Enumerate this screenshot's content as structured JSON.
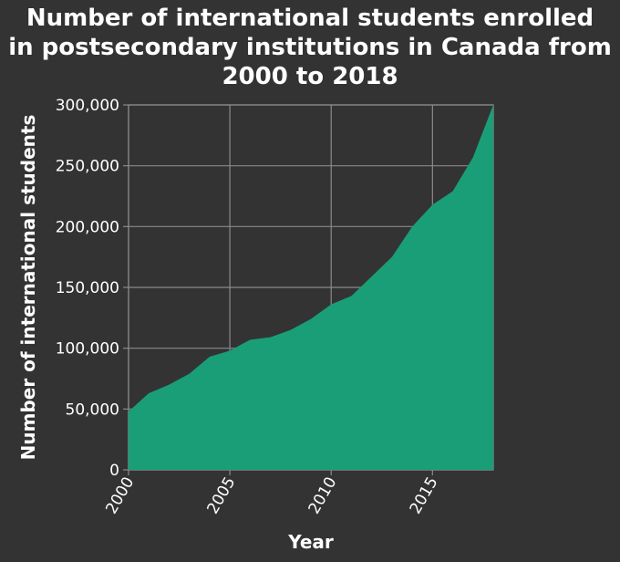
{
  "chart_data": {
    "type": "area",
    "title_lines": [
      "Number of international students enrolled",
      "in postsecondary institutions in Canada from",
      "2000 to 2018"
    ],
    "xlabel": "Year",
    "ylabel": "Number of international students",
    "xlim": [
      2000,
      2018
    ],
    "ylim": [
      0,
      300000
    ],
    "x_ticks": [
      2000,
      2005,
      2010,
      2015
    ],
    "y_ticks": [
      0,
      50000,
      100000,
      150000,
      200000,
      250000,
      300000
    ],
    "y_tick_labels": [
      "0",
      "50,000",
      "100,000",
      "150,000",
      "200,000",
      "250,000",
      "300,000"
    ],
    "grid": true,
    "colors": {
      "area": "#1a9e77",
      "background": "#333333",
      "grid": "#8a8a8a"
    },
    "series": [
      {
        "x": [
          2000,
          2001,
          2002,
          2003,
          2004,
          2005,
          2006,
          2007,
          2008,
          2009,
          2010,
          2011,
          2012,
          2013,
          2014,
          2015,
          2016,
          2017,
          2018
        ],
        "values": [
          48000,
          63000,
          70000,
          79000,
          93000,
          98000,
          107000,
          109000,
          115000,
          124000,
          136000,
          143000,
          159000,
          175000,
          200000,
          218000,
          229000,
          257000,
          300000
        ]
      }
    ]
  }
}
